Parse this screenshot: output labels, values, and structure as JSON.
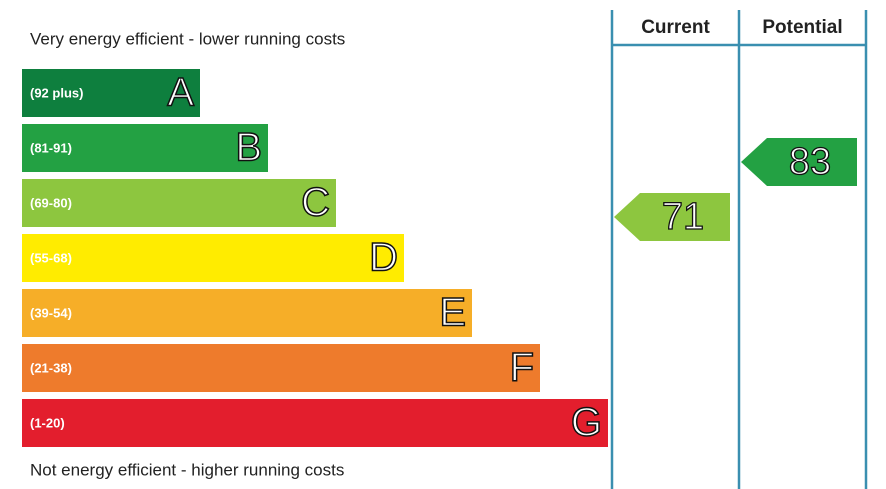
{
  "top_note": "Very energy efficient - lower running costs",
  "bottom_note": "Not energy efficient - higher running costs",
  "bands": [
    {
      "range": "(92 plus)",
      "letter": "A",
      "color": "#0e7f3e"
    },
    {
      "range": "(81-91)",
      "letter": "B",
      "color": "#23a143"
    },
    {
      "range": "(69-80)",
      "letter": "C",
      "color": "#8dc63f"
    },
    {
      "range": "(55-68)",
      "letter": "D",
      "color": "#ffec00"
    },
    {
      "range": "(39-54)",
      "letter": "E",
      "color": "#f6ae28"
    },
    {
      "range": "(21-38)",
      "letter": "F",
      "color": "#ee7b2c"
    },
    {
      "range": "(1-20)",
      "letter": "G",
      "color": "#e31e2d"
    }
  ],
  "columns": [
    {
      "header": "Current",
      "rating": 71
    },
    {
      "header": "Potential",
      "rating": 83
    }
  ]
}
